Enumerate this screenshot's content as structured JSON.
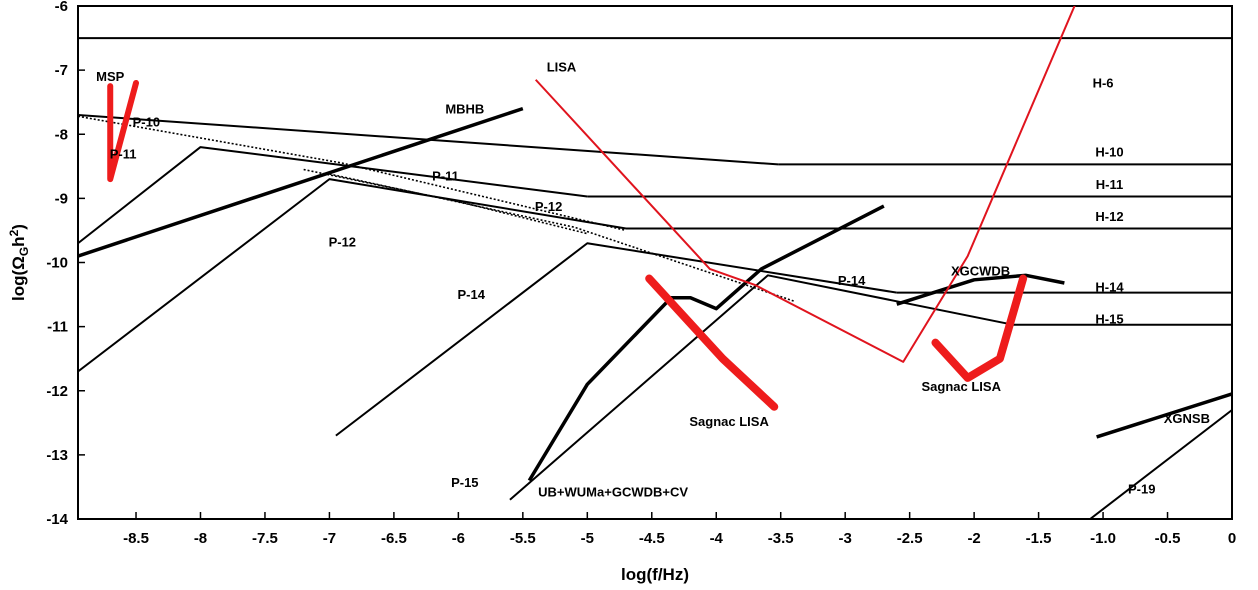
{
  "chart_data": {
    "type": "line",
    "xlabel": "log(f/Hz)",
    "ylabel_parts": {
      "prefix": "log(Ω",
      "sub": "G",
      "mid": "h",
      "sup": "2",
      "suffix": ")"
    },
    "xlim": [
      -8.95,
      0
    ],
    "ylim": [
      -14,
      -6
    ],
    "x_ticks": [
      {
        "v": -8.5,
        "label": "-8.5"
      },
      {
        "v": -8,
        "label": "-8"
      },
      {
        "v": -7.5,
        "label": "-7.5"
      },
      {
        "v": -7,
        "label": "-7"
      },
      {
        "v": -6.5,
        "label": "-6.5"
      },
      {
        "v": -6,
        "label": "-6"
      },
      {
        "v": -5.5,
        "label": "-5.5"
      },
      {
        "v": -5,
        "label": "-5"
      },
      {
        "v": -4.5,
        "label": "-4.5"
      },
      {
        "v": -4,
        "label": "-4"
      },
      {
        "v": -3.5,
        "label": "-3.5"
      },
      {
        "v": -3,
        "label": "-3"
      },
      {
        "v": -2.5,
        "label": "-2.5"
      },
      {
        "v": -2,
        "label": "-2"
      },
      {
        "v": -1.5,
        "label": "-1.5"
      },
      {
        "v": -1,
        "label": "-1.0"
      },
      {
        "v": -0.5,
        "label": "-0.5"
      },
      {
        "v": 0,
        "label": "0"
      }
    ],
    "y_ticks": [
      {
        "v": -6,
        "label": "-6"
      },
      {
        "v": -7,
        "label": "-7"
      },
      {
        "v": -8,
        "label": "-8"
      },
      {
        "v": -9,
        "label": "-9"
      },
      {
        "v": -10,
        "label": "-10"
      },
      {
        "v": -11,
        "label": "-11"
      },
      {
        "v": -12,
        "label": "-12"
      },
      {
        "v": -13,
        "label": "-13"
      },
      {
        "v": -14,
        "label": "-14"
      }
    ],
    "series": [
      {
        "name": "H-6",
        "color": "#000000",
        "width": 2,
        "points": [
          [
            -8.95,
            -6.5
          ],
          [
            0,
            -6.5
          ]
        ]
      },
      {
        "name": "H-10",
        "color": "#000000",
        "width": 2,
        "points": [
          [
            -3.52,
            -8.47
          ],
          [
            0,
            -8.47
          ]
        ]
      },
      {
        "name": "H-11",
        "color": "#000000",
        "width": 2,
        "points": [
          [
            -5.0,
            -8.97
          ],
          [
            0,
            -8.97
          ]
        ]
      },
      {
        "name": "H-12",
        "color": "#000000",
        "width": 2,
        "points": [
          [
            -4.7,
            -9.47
          ],
          [
            0,
            -9.47
          ]
        ]
      },
      {
        "name": "H-14",
        "color": "#000000",
        "width": 2,
        "points": [
          [
            -2.6,
            -10.47
          ],
          [
            0,
            -10.47
          ]
        ]
      },
      {
        "name": "H-15",
        "color": "#000000",
        "width": 2,
        "points": [
          [
            -1.7,
            -10.97
          ],
          [
            0,
            -10.97
          ]
        ]
      },
      {
        "name": "P-10",
        "color": "#000000",
        "width": 2,
        "points": [
          [
            -8.95,
            -7.7
          ],
          [
            -3.52,
            -8.47
          ]
        ]
      },
      {
        "name": "P-11",
        "color": "#000000",
        "width": 2,
        "points": [
          [
            -8.95,
            -9.7
          ],
          [
            -8.0,
            -8.2
          ],
          [
            -5.0,
            -8.97
          ]
        ]
      },
      {
        "name": "P-12",
        "color": "#000000",
        "width": 2,
        "points": [
          [
            -8.95,
            -11.7
          ],
          [
            -7.0,
            -8.7
          ],
          [
            -4.7,
            -9.47
          ]
        ]
      },
      {
        "name": "P-14",
        "color": "#000000",
        "width": 2,
        "points": [
          [
            -6.95,
            -12.7
          ],
          [
            -5.0,
            -9.7
          ],
          [
            -2.6,
            -10.47
          ]
        ]
      },
      {
        "name": "P-15",
        "color": "#000000",
        "width": 2,
        "points": [
          [
            -5.6,
            -13.7
          ],
          [
            -3.6,
            -10.2
          ],
          [
            -1.7,
            -10.97
          ]
        ]
      },
      {
        "name": "P-19",
        "color": "#000000",
        "width": 2,
        "points": [
          [
            -1.1,
            -14.0
          ],
          [
            0,
            -12.3
          ]
        ]
      },
      {
        "name": "MBHB",
        "color": "#000000",
        "width": 3.5,
        "points": [
          [
            -8.95,
            -9.9
          ],
          [
            -5.5,
            -7.6
          ]
        ]
      },
      {
        "name": "XGCWDB",
        "color": "#000000",
        "width": 3.5,
        "points": [
          [
            -2.6,
            -10.65
          ],
          [
            -2.0,
            -10.27
          ],
          [
            -1.6,
            -10.2
          ],
          [
            -1.3,
            -10.32
          ]
        ]
      },
      {
        "name": "XGNSB",
        "color": "#000000",
        "width": 3.5,
        "points": [
          [
            -1.05,
            -12.72
          ],
          [
            0,
            -12.05
          ]
        ]
      },
      {
        "name": "UB+WUMa+GCWDB+CV",
        "color": "#000000",
        "width": 3.5,
        "points": [
          [
            -5.45,
            -13.4
          ],
          [
            -5.0,
            -11.9
          ],
          [
            -4.35,
            -10.55
          ],
          [
            -4.2,
            -10.55
          ],
          [
            -4.0,
            -10.72
          ],
          [
            -3.65,
            -10.1
          ],
          [
            -2.7,
            -9.12
          ]
        ]
      },
      {
        "name": "LISA",
        "color": "#e0141e",
        "width": 2,
        "points": [
          [
            -5.4,
            -7.15
          ],
          [
            -4.05,
            -10.1
          ],
          [
            -3.7,
            -10.35
          ],
          [
            -2.55,
            -11.55
          ],
          [
            -2.05,
            -9.9
          ],
          [
            -1.2,
            -5.9
          ]
        ]
      },
      {
        "name": "MSP",
        "color": "#ee1c1c",
        "width": 6,
        "points": [
          [
            -8.7,
            -7.25
          ],
          [
            -8.7,
            -8.7
          ],
          [
            -8.5,
            -7.2
          ]
        ]
      },
      {
        "name": "Sagnac LISA",
        "color": "#ee1c1c",
        "width": 8,
        "points": [
          [
            -4.52,
            -10.25
          ],
          [
            -3.95,
            -11.5
          ],
          [
            -3.55,
            -12.25
          ]
        ]
      },
      {
        "name": "Sagnac LISA",
        "color": "#ee1c1c",
        "width": 8,
        "points": [
          [
            -2.3,
            -11.25
          ],
          [
            -2.05,
            -11.8
          ],
          [
            -1.8,
            -11.5
          ],
          [
            -1.62,
            -10.25
          ]
        ]
      }
    ],
    "dotted_lines": [
      {
        "color": "#000000",
        "points": [
          [
            -8.95,
            -7.72
          ],
          [
            -6.9,
            -8.45
          ],
          [
            -4.7,
            -9.5
          ]
        ]
      },
      {
        "color": "#000000",
        "points": [
          [
            -7.0,
            -8.62
          ],
          [
            -5.1,
            -9.45
          ],
          [
            -3.4,
            -10.6
          ]
        ]
      },
      {
        "color": "#000000",
        "points": [
          [
            -7.2,
            -8.55
          ],
          [
            -6.0,
            -9.05
          ],
          [
            -5.0,
            -9.55
          ]
        ]
      }
    ],
    "labels": [
      {
        "text": "MSP",
        "x": -8.7,
        "y": -7.17
      },
      {
        "text": "P-10",
        "x": -8.42,
        "y": -7.88
      },
      {
        "text": "P-11",
        "x": -8.6,
        "y": -8.38
      },
      {
        "text": "MBHB",
        "x": -5.95,
        "y": -7.68
      },
      {
        "text": "P-11",
        "x": -6.1,
        "y": -8.72
      },
      {
        "text": "P-12",
        "x": -6.9,
        "y": -9.75
      },
      {
        "text": "P-12",
        "x": -5.3,
        "y": -9.2
      },
      {
        "text": "LISA",
        "x": -5.2,
        "y": -7.02
      },
      {
        "text": "P-14",
        "x": -5.9,
        "y": -10.57
      },
      {
        "text": "P-14",
        "x": -2.95,
        "y": -10.35
      },
      {
        "text": "H-6",
        "x": -1.0,
        "y": -7.27
      },
      {
        "text": "H-10",
        "x": -0.95,
        "y": -8.35
      },
      {
        "text": "H-11",
        "x": -0.95,
        "y": -8.85
      },
      {
        "text": "H-12",
        "x": -0.95,
        "y": -9.35
      },
      {
        "text": "XGCWDB",
        "x": -1.95,
        "y": -10.2
      },
      {
        "text": "H-14",
        "x": -0.95,
        "y": -10.45
      },
      {
        "text": "H-15",
        "x": -0.95,
        "y": -10.95
      },
      {
        "text": "Sagnac LISA",
        "x": -2.1,
        "y": -12.0
      },
      {
        "text": "Sagnac LISA",
        "x": -3.9,
        "y": -12.55
      },
      {
        "text": "XGNSB",
        "x": -0.35,
        "y": -12.5
      },
      {
        "text": "P-15",
        "x": -5.95,
        "y": -13.5
      },
      {
        "text": "UB+WUMa+GCWDB+CV",
        "x": -4.8,
        "y": -13.65
      },
      {
        "text": "P-19",
        "x": -0.7,
        "y": -13.6
      }
    ]
  }
}
